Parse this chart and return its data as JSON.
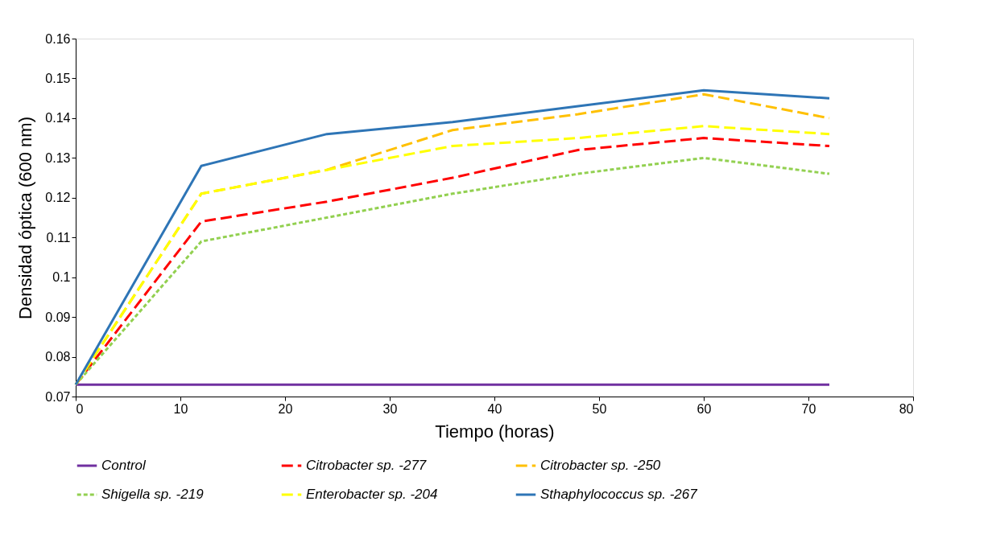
{
  "chart_data": {
    "type": "line",
    "xlabel": "Tiempo (horas)",
    "ylabel": "Densidad óptica (600 nm)",
    "x": [
      0,
      12,
      24,
      36,
      48,
      60,
      72
    ],
    "xlim": [
      0,
      80
    ],
    "xticks": [
      0,
      10,
      20,
      30,
      40,
      50,
      60,
      70,
      80
    ],
    "ylim": [
      0.07,
      0.16
    ],
    "yticks": [
      0.07,
      0.08,
      0.09,
      0.1,
      0.11,
      0.12,
      0.13,
      0.14,
      0.15,
      0.16
    ],
    "grid": false,
    "legend": "bottom",
    "marker": "none",
    "series": [
      {
        "name": "Control",
        "color": "#7030a0",
        "line_style": "solid",
        "values": [
          0.073,
          0.073,
          0.073,
          0.073,
          0.073,
          0.073,
          0.073
        ]
      },
      {
        "name": "Citrobacter sp. -277",
        "color": "#ff0000",
        "line_style": "dashed",
        "values": [
          0.073,
          0.114,
          0.119,
          0.125,
          0.132,
          0.135,
          0.133
        ]
      },
      {
        "name": "Citrobacter sp. -250",
        "color": "#ffc000",
        "line_style": "dashed",
        "values": [
          0.073,
          0.121,
          0.127,
          0.137,
          0.141,
          0.146,
          0.14
        ]
      },
      {
        "name": "Shigella sp. -219",
        "color": "#92d050",
        "line_style": "dotted",
        "values": [
          0.073,
          0.109,
          0.115,
          0.121,
          0.126,
          0.13,
          0.126
        ]
      },
      {
        "name": "Enterobacter sp. -204",
        "color": "#ffff00",
        "line_style": "dashed",
        "values": [
          0.073,
          0.121,
          0.127,
          0.133,
          0.135,
          0.138,
          0.136
        ]
      },
      {
        "name": "Sthaphylococcus sp. -267",
        "color": "#2e75b6",
        "line_style": "solid",
        "values": [
          0.073,
          0.128,
          0.136,
          0.139,
          0.143,
          0.147,
          0.145
        ]
      }
    ]
  }
}
